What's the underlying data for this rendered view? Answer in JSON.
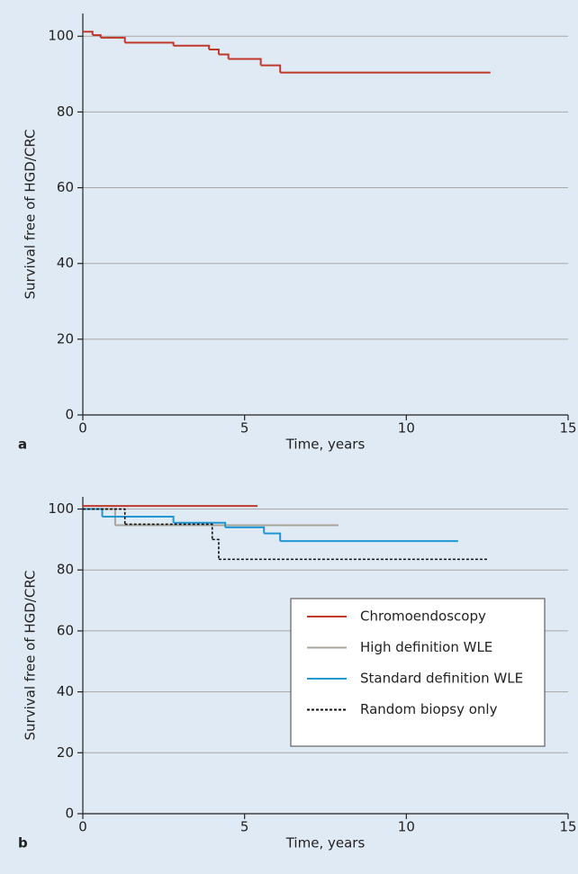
{
  "chart_data": [
    {
      "type": "step",
      "panel_label": "a",
      "x_label": "Time, years",
      "y_label": "Survival free of HGD/CRC",
      "xlim": [
        0,
        15
      ],
      "xticks": [
        0,
        5,
        10,
        15
      ],
      "ylim": [
        0,
        106
      ],
      "yticks": [
        0,
        20,
        40,
        60,
        80,
        100
      ],
      "grid": true,
      "series": [
        {
          "color": "#c0392b",
          "dash": false,
          "x": [
            0,
            0.3,
            0.55,
            1.3,
            2.8,
            3.9,
            4.2,
            4.5,
            5.5,
            6.1,
            12.6
          ],
          "values": [
            101.2,
            100.3,
            99.6,
            98.3,
            97.5,
            96.5,
            95.2,
            94,
            92.3,
            90.4,
            90.4
          ]
        }
      ]
    },
    {
      "type": "step",
      "panel_label": "b",
      "x_label": "Time, years",
      "y_label": "Survival free of HGD/CRC",
      "xlim": [
        0,
        15
      ],
      "xticks": [
        0,
        5,
        10,
        15
      ],
      "ylim": [
        0,
        104
      ],
      "yticks": [
        0,
        20,
        40,
        60,
        80,
        100
      ],
      "grid": true,
      "legend": "right",
      "series": [
        {
          "name": "Chromoendoscopy",
          "color": "#c0392b",
          "dash": false,
          "x": [
            0,
            5.4
          ],
          "values": [
            101,
            101
          ]
        },
        {
          "name": "High definition WLE",
          "color": "#a9a49b",
          "dash": false,
          "x": [
            0,
            1.0,
            7.9
          ],
          "values": [
            100,
            94.7,
            94.7
          ]
        },
        {
          "name": "Standard definition WLE",
          "color": "#1f97d1",
          "dash": false,
          "x": [
            0,
            0.6,
            2.8,
            4.4,
            5.6,
            6.1,
            11.6
          ],
          "values": [
            100,
            97.5,
            95.5,
            94,
            92,
            89.5,
            89.5
          ]
        },
        {
          "name": "Random biopsy only",
          "color": "#111111",
          "dash": true,
          "x": [
            0,
            1.3,
            4.0,
            4.2,
            12.5
          ],
          "values": [
            100,
            95,
            90,
            83.5,
            83.5
          ]
        }
      ]
    }
  ]
}
